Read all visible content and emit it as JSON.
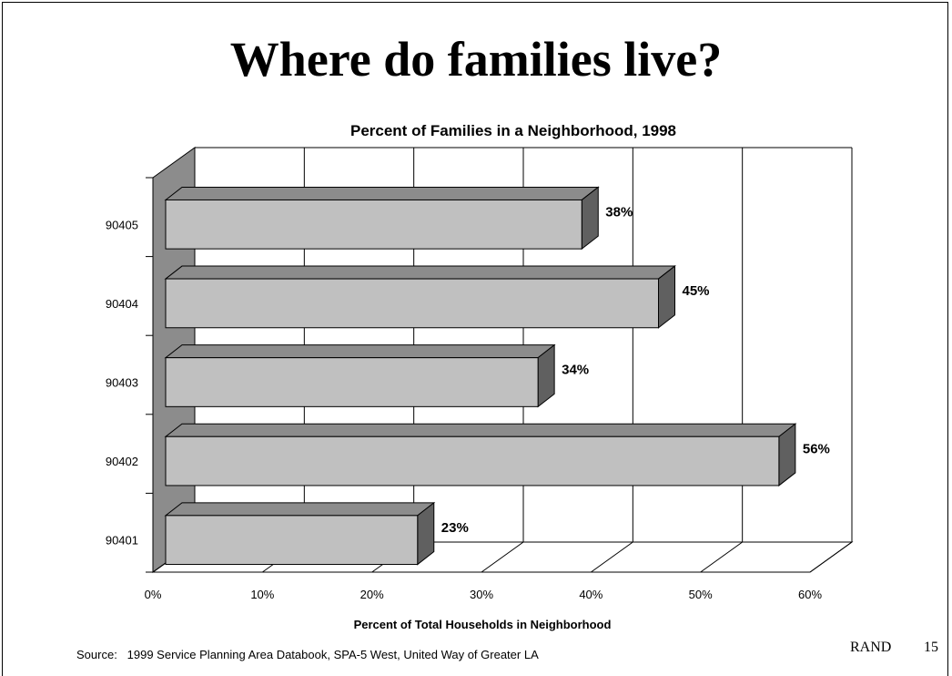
{
  "slide": {
    "title": "Where do families live?",
    "source": "Source:   1999 Service Planning Area Databook, SPA-5 West, United Way of Greater LA",
    "org": "RAND",
    "page_number": "15"
  },
  "chart_data": {
    "type": "bar",
    "orientation": "horizontal",
    "style": "3d",
    "title": "Percent of Families in a Neighborhood, 1998",
    "xlabel": "Percent of Total Households in Neighborhood",
    "ylabel": "",
    "categories": [
      "90401",
      "90402",
      "90403",
      "90404",
      "90405"
    ],
    "values": [
      23,
      56,
      34,
      45,
      38
    ],
    "data_labels": [
      "23%",
      "56%",
      "34%",
      "45%",
      "38%"
    ],
    "xlim": [
      0,
      60
    ],
    "xticks": [
      "0%",
      "10%",
      "20%",
      "30%",
      "40%",
      "50%",
      "60%"
    ],
    "grid": true,
    "colors": {
      "bar_front": "#c0c0c0",
      "bar_top": "#8c8c8c",
      "bar_side": "#606060",
      "side_wall": "#8c8c8c"
    }
  }
}
